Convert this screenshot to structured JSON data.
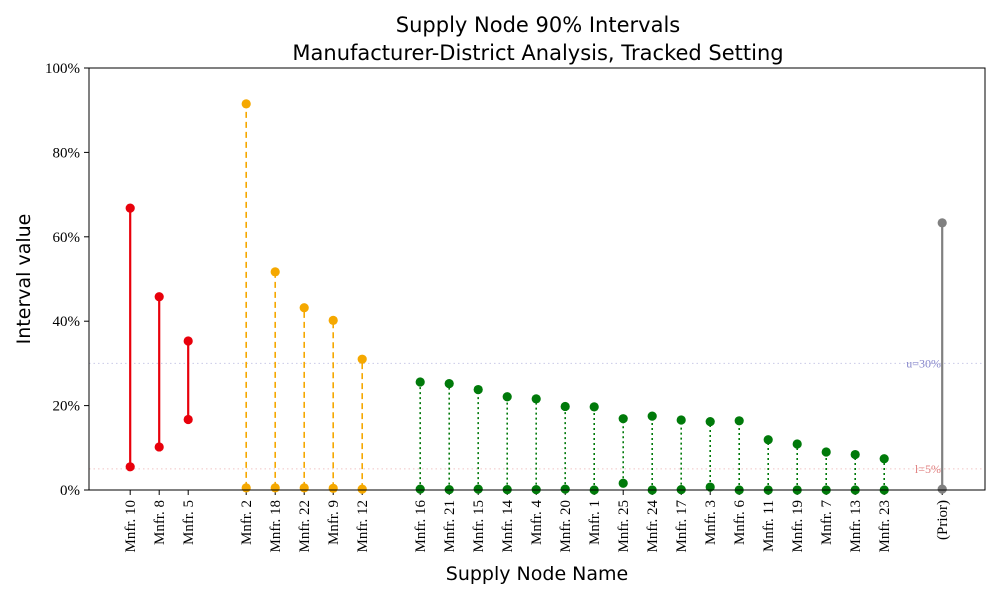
{
  "chart_data": {
    "type": "scatter",
    "title": "Supply Node 90% Intervals",
    "subtitle": "Manufacturer-District Analysis, Tracked Setting",
    "xlabel": "Supply Node Name",
    "ylabel": "Interval value",
    "ylim": [
      0,
      100
    ],
    "yticks": [
      "0%",
      "20%",
      "40%",
      "60%",
      "80%",
      "100%"
    ],
    "grid": false,
    "reference_lines": [
      {
        "label": "u=30%",
        "value": 30,
        "color": "#8888cc"
      },
      {
        "label": "l=5%",
        "value": 5,
        "color": "#e08080"
      }
    ],
    "groups": [
      {
        "color": "#e8000b",
        "line_style": "solid",
        "items": [
          {
            "name": "Mnfr. 10",
            "low": 5.5,
            "high": 66.8
          },
          {
            "name": "Mnfr. 8",
            "low": 10.2,
            "high": 45.8
          },
          {
            "name": "Mnfr. 5",
            "low": 16.7,
            "high": 35.3
          }
        ]
      },
      {
        "color": "#f5a800",
        "line_style": "dashed",
        "items": [
          {
            "name": "Mnfr. 2",
            "low": 0.5,
            "high": 91.5
          },
          {
            "name": "Mnfr. 18",
            "low": 0.5,
            "high": 51.7
          },
          {
            "name": "Mnfr. 22",
            "low": 0.5,
            "high": 43.2
          },
          {
            "name": "Mnfr. 9",
            "low": 0.4,
            "high": 40.2
          },
          {
            "name": "Mnfr. 12",
            "low": 0.2,
            "high": 31.0
          }
        ]
      },
      {
        "color": "#007a0a",
        "line_style": "dotted",
        "items": [
          {
            "name": "Mnfr. 16",
            "low": 0.2,
            "high": 25.6
          },
          {
            "name": "Mnfr. 21",
            "low": 0.1,
            "high": 25.2
          },
          {
            "name": "Mnfr. 15",
            "low": 0.2,
            "high": 23.8
          },
          {
            "name": "Mnfr. 14",
            "low": 0.1,
            "high": 22.1
          },
          {
            "name": "Mnfr. 4",
            "low": 0.1,
            "high": 21.6
          },
          {
            "name": "Mnfr. 20",
            "low": 0.2,
            "high": 19.8
          },
          {
            "name": "Mnfr. 1",
            "low": 0.0,
            "high": 19.7
          },
          {
            "name": "Mnfr. 25",
            "low": 1.6,
            "high": 16.9
          },
          {
            "name": "Mnfr. 24",
            "low": 0.0,
            "high": 17.5
          },
          {
            "name": "Mnfr. 17",
            "low": 0.1,
            "high": 16.6
          },
          {
            "name": "Mnfr. 3",
            "low": 0.7,
            "high": 16.2
          },
          {
            "name": "Mnfr. 6",
            "low": 0.0,
            "high": 16.4
          },
          {
            "name": "Mnfr. 11",
            "low": 0.0,
            "high": 11.9
          },
          {
            "name": "Mnfr. 19",
            "low": 0.0,
            "high": 10.9
          },
          {
            "name": "Mnfr. 7",
            "low": 0.0,
            "high": 9.0
          },
          {
            "name": "Mnfr. 13",
            "low": 0.0,
            "high": 8.4
          },
          {
            "name": "Mnfr. 23",
            "low": 0.0,
            "high": 7.4
          }
        ]
      },
      {
        "color": "#808080",
        "line_style": "solid",
        "items": [
          {
            "name": "(Prior)",
            "low": 0.2,
            "high": 63.3
          }
        ]
      }
    ]
  }
}
